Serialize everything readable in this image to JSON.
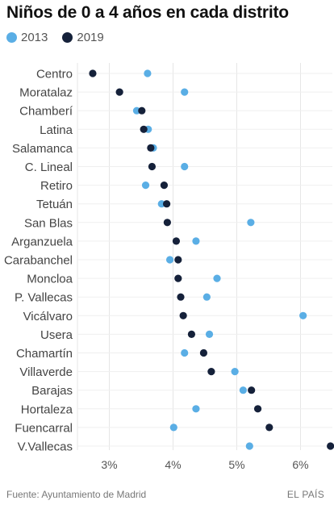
{
  "header": {
    "title": "Niños de 0 a 4 años en cada distrito"
  },
  "legend": [
    {
      "name": "2013",
      "color": "#5aaee5"
    },
    {
      "name": "2019",
      "color": "#15213a"
    }
  ],
  "footer": {
    "source": "Fuente: Ayuntamiento de Madrid",
    "brand": "EL PAÍS"
  },
  "chart_data": {
    "type": "scatter",
    "title": "Niños de 0 a 4 años en cada distrito",
    "xlabel": "",
    "ylabel": "",
    "xlim": [
      2.5,
      6.5
    ],
    "xticks": [
      3,
      4,
      5,
      6
    ],
    "xtick_labels": [
      "3%",
      "4%",
      "5%",
      "6%"
    ],
    "grid": true,
    "legend_position": "top-left",
    "categories": [
      "Centro",
      "Moratalaz",
      "Chamberí",
      "Latina",
      "Salamanca",
      "C. Lineal",
      "Retiro",
      "Tetuán",
      "San Blas",
      "Arganzuela",
      "Carabanchel",
      "Moncloa",
      "P. Vallecas",
      "Vicálvaro",
      "Usera",
      "Chamartín",
      "Villaverde",
      "Barajas",
      "Hortaleza",
      "Fuencarral",
      "V.Vallecas"
    ],
    "series": [
      {
        "name": "2013",
        "color": "#5aaee5",
        "values": [
          3.6,
          4.18,
          3.43,
          3.61,
          3.69,
          4.18,
          3.57,
          3.82,
          5.22,
          4.36,
          3.95,
          4.69,
          4.53,
          6.04,
          4.57,
          4.18,
          4.97,
          5.1,
          4.36,
          4.01,
          5.2
        ]
      },
      {
        "name": "2019",
        "color": "#15213a",
        "values": [
          2.74,
          3.16,
          3.51,
          3.54,
          3.65,
          3.67,
          3.86,
          3.9,
          3.91,
          4.05,
          4.08,
          4.08,
          4.12,
          4.16,
          4.29,
          4.48,
          4.6,
          5.23,
          5.33,
          5.51,
          6.47
        ]
      }
    ]
  }
}
